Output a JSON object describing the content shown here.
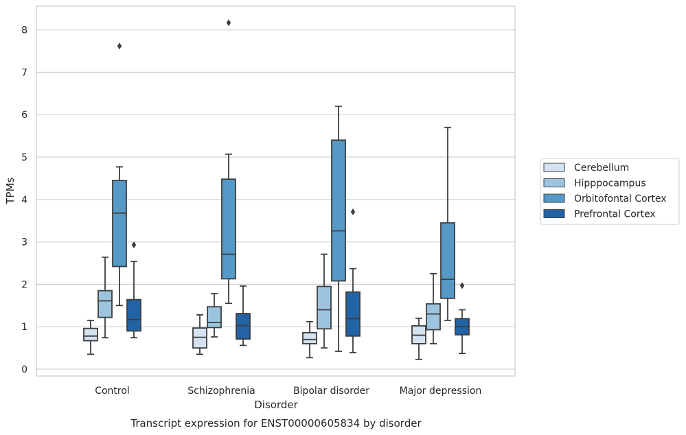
{
  "chart_data": {
    "type": "box",
    "xlabel": "Disorder",
    "ylabel": "TPMs",
    "caption": "Transcript expression for ENST00000605834 by disorder",
    "ylim": [
      -0.15,
      8.6
    ],
    "yticks": [
      0,
      1,
      2,
      3,
      4,
      5,
      6,
      7,
      8
    ],
    "grid": "horizontal",
    "legend_position": "right",
    "categories": [
      "Control",
      "Schizophrenia",
      "Bipolar disorder",
      "Major depression"
    ],
    "series": [
      {
        "name": "Cerebellum",
        "color": "#d4e3f1",
        "boxes": [
          {
            "whislo": 0.35,
            "q1": 0.67,
            "med": 0.78,
            "q3": 0.96,
            "whishi": 1.15,
            "fliers": []
          },
          {
            "whislo": 0.35,
            "q1": 0.5,
            "med": 0.75,
            "q3": 0.97,
            "whishi": 1.28,
            "fliers": []
          },
          {
            "whislo": 0.27,
            "q1": 0.6,
            "med": 0.7,
            "q3": 0.86,
            "whishi": 1.12,
            "fliers": []
          },
          {
            "whislo": 0.23,
            "q1": 0.6,
            "med": 0.8,
            "q3": 1.02,
            "whishi": 1.2,
            "fliers": []
          }
        ]
      },
      {
        "name": "Hipppocampus",
        "color": "#9dc4de",
        "boxes": [
          {
            "whislo": 0.74,
            "q1": 1.22,
            "med": 1.61,
            "q3": 1.85,
            "whishi": 2.64,
            "fliers": []
          },
          {
            "whislo": 0.76,
            "q1": 0.98,
            "med": 1.1,
            "q3": 1.47,
            "whishi": 1.78,
            "fliers": []
          },
          {
            "whislo": 0.5,
            "q1": 0.95,
            "med": 1.4,
            "q3": 1.95,
            "whishi": 2.71,
            "fliers": []
          },
          {
            "whislo": 0.6,
            "q1": 0.93,
            "med": 1.3,
            "q3": 1.54,
            "whishi": 2.25,
            "fliers": []
          }
        ]
      },
      {
        "name": "Orbitofontal Cortex",
        "color": "#5799c6",
        "boxes": [
          {
            "whislo": 1.5,
            "q1": 2.42,
            "med": 3.68,
            "q3": 4.45,
            "whishi": 4.77,
            "fliers": [
              7.62
            ]
          },
          {
            "whislo": 1.55,
            "q1": 2.13,
            "med": 2.71,
            "q3": 4.48,
            "whishi": 5.07,
            "fliers": [
              8.17
            ]
          },
          {
            "whislo": 0.42,
            "q1": 2.08,
            "med": 3.26,
            "q3": 5.4,
            "whishi": 6.2,
            "fliers": []
          },
          {
            "whislo": 1.15,
            "q1": 1.67,
            "med": 2.12,
            "q3": 3.45,
            "whishi": 5.7,
            "fliers": []
          }
        ]
      },
      {
        "name": "Prefrontal Cortex",
        "color": "#2263a6",
        "boxes": [
          {
            "whislo": 0.74,
            "q1": 0.9,
            "med": 1.17,
            "q3": 1.64,
            "whishi": 2.54,
            "fliers": [
              2.93
            ]
          },
          {
            "whislo": 0.56,
            "q1": 0.71,
            "med": 1.03,
            "q3": 1.31,
            "whishi": 1.96,
            "fliers": []
          },
          {
            "whislo": 0.39,
            "q1": 0.78,
            "med": 1.19,
            "q3": 1.82,
            "whishi": 2.37,
            "fliers": [
              3.71
            ]
          },
          {
            "whislo": 0.37,
            "q1": 0.81,
            "med": 1.0,
            "q3": 1.19,
            "whishi": 1.4,
            "fliers": [
              1.97
            ]
          }
        ]
      }
    ]
  }
}
